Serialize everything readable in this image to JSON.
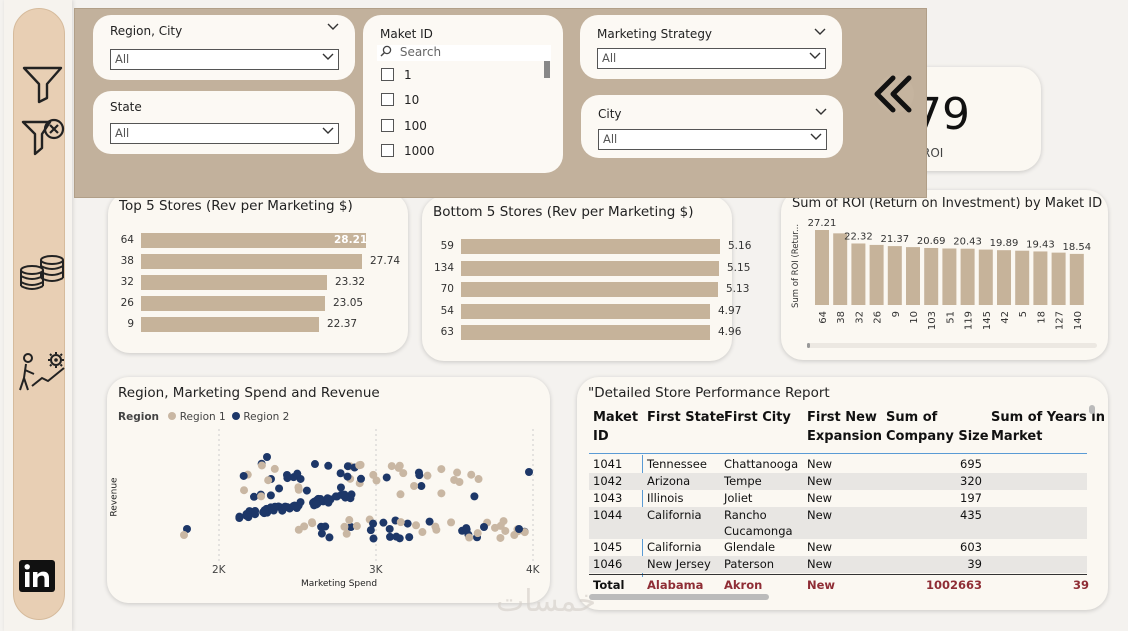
{
  "filters": {
    "region_city": {
      "label": "Region, City",
      "value": "All"
    },
    "state": {
      "label": "State",
      "value": "All"
    },
    "market_id": {
      "label": "Maket ID",
      "placeholder": "Search",
      "items": [
        "1",
        "10",
        "100",
        "1000"
      ]
    },
    "marketing_strategy": {
      "label": "Marketing Strategy",
      "value": "All"
    },
    "city": {
      "label": "City",
      "value": "All"
    }
  },
  "kpi": {
    "value": "79",
    "label": "ROI"
  },
  "top5": {
    "title": "Top 5 Stores (Rev per Marketing $)",
    "chart_data": {
      "type": "bar",
      "categories": [
        "64",
        "38",
        "32",
        "26",
        "9"
      ],
      "values": [
        28.21,
        27.74,
        23.32,
        23.05,
        22.37
      ],
      "labels": [
        "28.21",
        "27.74",
        "23.32",
        "23.05",
        "22.37"
      ]
    }
  },
  "bottom5": {
    "title": "Bottom 5 Stores (Rev per Marketing $)",
    "chart_data": {
      "type": "bar",
      "categories": [
        "59",
        "134",
        "70",
        "54",
        "63"
      ],
      "values": [
        5.16,
        5.15,
        5.13,
        4.97,
        4.96
      ],
      "labels": [
        "5.16",
        "5.15",
        "5.13",
        "4.97",
        "4.96"
      ]
    }
  },
  "roi_chart": {
    "title": "Sum of ROI (Return on Investment) by Maket ID",
    "ylabel": "Sum of ROI (Retur...",
    "chart_data": {
      "type": "bar",
      "categories": [
        "64",
        "38",
        "32",
        "26",
        "9",
        "10",
        "103",
        "51",
        "119",
        "145",
        "42",
        "5",
        "18",
        "127",
        "140"
      ],
      "values": [
        27.21,
        26.0,
        22.32,
        21.8,
        21.37,
        21.0,
        20.69,
        20.5,
        20.43,
        20.1,
        19.89,
        19.7,
        19.43,
        19.0,
        18.54
      ],
      "labels": [
        "27.21",
        "",
        "22.32",
        "",
        "21.37",
        "",
        "20.69",
        "",
        "20.43",
        "",
        "19.89",
        "",
        "19.43",
        "",
        "18.54"
      ]
    }
  },
  "scatter": {
    "title": "Region, Marketing Spend and Revenue",
    "legend_title": "Region",
    "series_names": [
      "Region 1",
      "Region 2"
    ],
    "colors": {
      "region1": "#c9b7a3",
      "region2": "#1d3768"
    },
    "xlabel": "Marketing Spend",
    "ylabel": "Revenue",
    "xticks": [
      "2K",
      "3K",
      "4K"
    ]
  },
  "table": {
    "title": "\"Detailed Store Performance Report",
    "headers": [
      [
        "Maket",
        "ID"
      ],
      [
        "First State",
        ""
      ],
      [
        "First City",
        ""
      ],
      [
        "First New",
        "Expansion"
      ],
      [
        "Sum of",
        "Company Size"
      ],
      [
        "Sum of Years in",
        "Market"
      ]
    ],
    "rows": [
      {
        "id": "1041",
        "state": "Tennessee",
        "city": "Chattanooga",
        "city2": "",
        "exp": "New",
        "size": "695"
      },
      {
        "id": "1042",
        "state": "Arizona",
        "city": "Tempe",
        "city2": "",
        "exp": "New",
        "size": "320"
      },
      {
        "id": "1043",
        "state": "Illinois",
        "city": "Joliet",
        "city2": "",
        "exp": "New",
        "size": "197"
      },
      {
        "id": "1044",
        "state": "California",
        "city": "Rancho",
        "city2": "Cucamonga",
        "exp": "New",
        "size": "435"
      },
      {
        "id": "1045",
        "state": "California",
        "city": "Glendale",
        "city2": "",
        "exp": "New",
        "size": "603"
      },
      {
        "id": "1046",
        "state": "New Jersey",
        "city": "Paterson",
        "city2": "",
        "exp": "New",
        "size": "39"
      }
    ],
    "total": {
      "label": "Total",
      "state": "Alabama",
      "city": "Akron",
      "exp": "New",
      "size": "1002663",
      "years": "39"
    }
  },
  "watermark": "خمسات"
}
